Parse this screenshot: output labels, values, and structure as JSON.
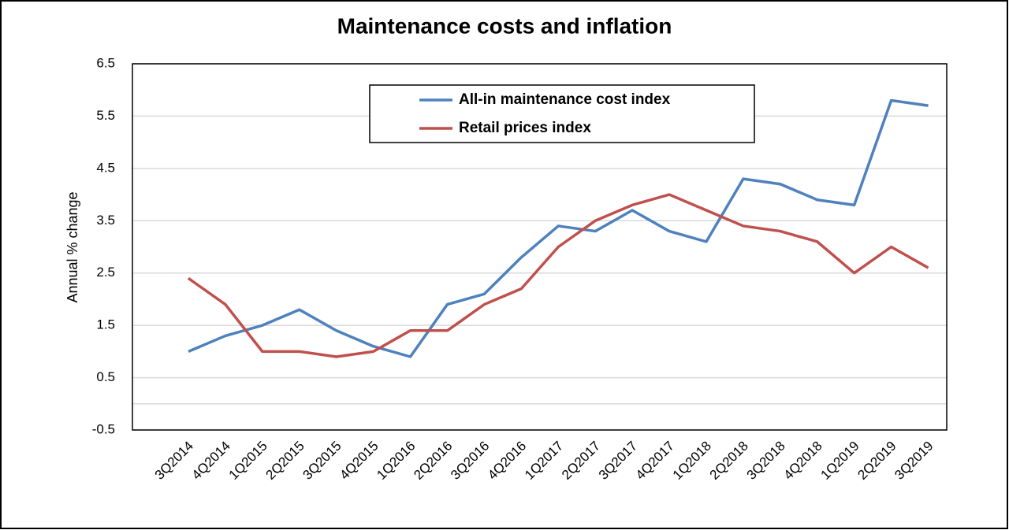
{
  "chart_data": {
    "type": "line",
    "title": "Maintenance costs and inflation",
    "y_label": "Annual % change",
    "categories": [
      "3Q2014",
      "4Q2014",
      "1Q2015",
      "2Q2015",
      "3Q2015",
      "4Q2015",
      "1Q2016",
      "2Q2016",
      "3Q2016",
      "4Q2016",
      "1Q2017",
      "2Q2017",
      "3Q2017",
      "4Q2017",
      "1Q2018",
      "2Q2018",
      "3Q2018",
      "4Q2018",
      "1Q2019",
      "2Q2019",
      "3Q2019"
    ],
    "series": [
      {
        "name": "All-in maintenance cost index",
        "color": "#4f81bd",
        "values": [
          1.0,
          1.3,
          1.5,
          1.8,
          1.4,
          1.1,
          0.9,
          1.9,
          2.1,
          2.8,
          3.4,
          3.3,
          3.7,
          3.3,
          3.1,
          4.3,
          4.2,
          3.9,
          3.8,
          5.8,
          5.7
        ]
      },
      {
        "name": "Retail prices index",
        "color": "#c0504d",
        "values": [
          2.4,
          1.9,
          1.0,
          1.0,
          0.9,
          1.0,
          1.4,
          1.4,
          1.9,
          2.2,
          3.0,
          3.5,
          3.8,
          4.0,
          3.7,
          3.4,
          3.3,
          3.1,
          2.5,
          3.0,
          2.6
        ]
      }
    ],
    "ylim": [
      -0.5,
      6.5
    ],
    "yticks": [
      -0.5,
      0.5,
      1.5,
      2.5,
      3.5,
      4.5,
      5.5,
      6.5
    ],
    "grid": true,
    "legend": "top"
  }
}
